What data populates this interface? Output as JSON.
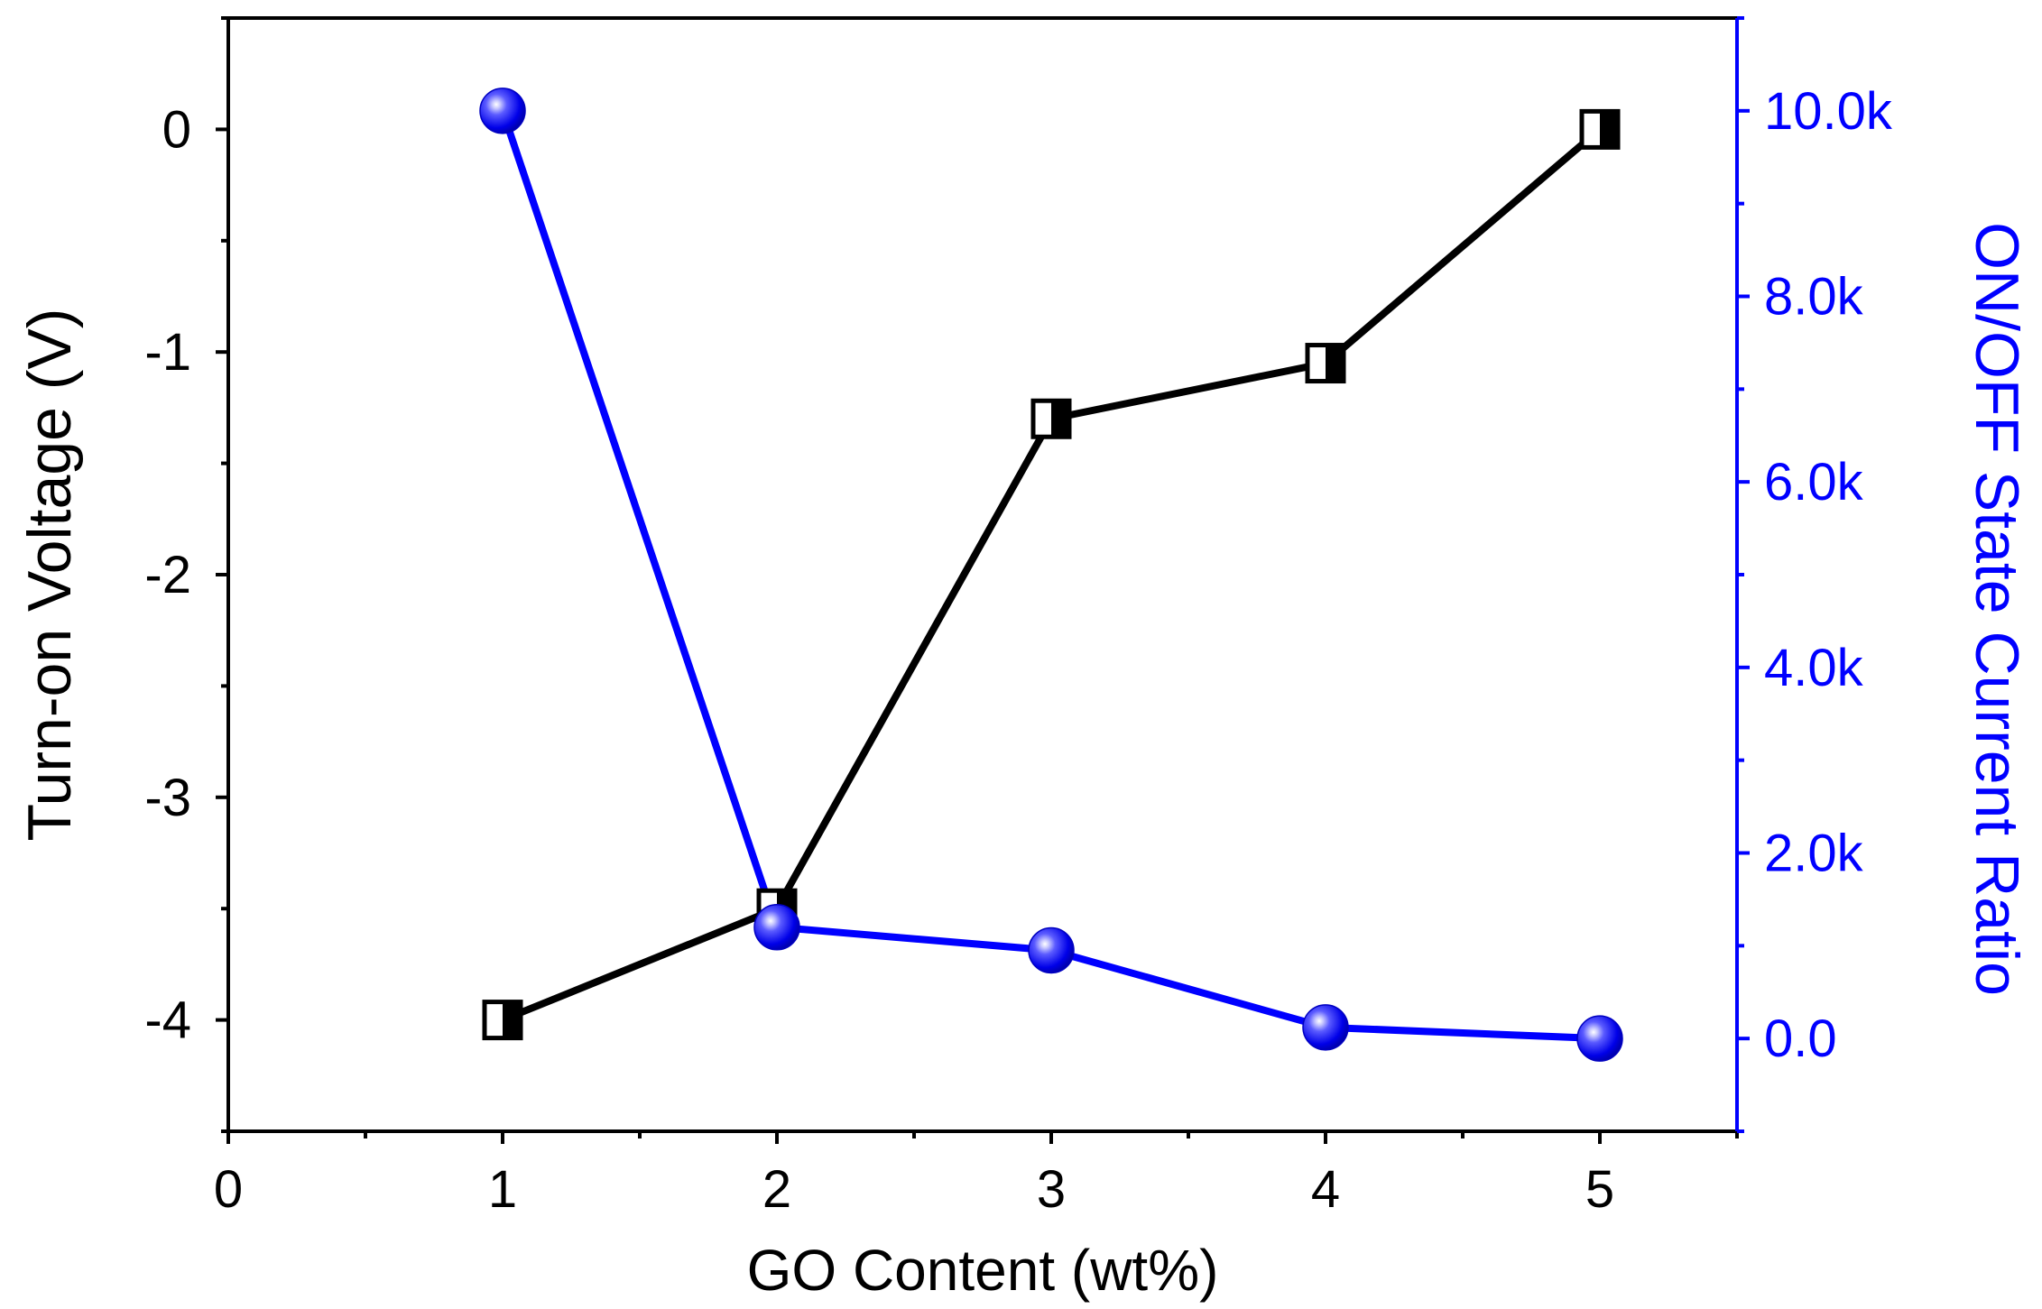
{
  "chart_data": {
    "type": "line",
    "title": "",
    "xlabel": "GO Content (wt%)",
    "ylabel_left": "Turn-on Voltage (V)",
    "ylabel_right": "ON/OFF State Current Ratio",
    "xlim": [
      0,
      5.5
    ],
    "ylim_left": [
      -4.5,
      0.5
    ],
    "ylim_right": [
      -1000,
      11000
    ],
    "x_ticks": [
      0,
      1,
      2,
      3,
      4,
      5
    ],
    "x_tick_labels": [
      "0",
      "1",
      "2",
      "3",
      "4",
      "5"
    ],
    "y_left_ticks": [
      0,
      -1,
      -2,
      -3,
      -4
    ],
    "y_left_tick_labels": [
      "0",
      "-1",
      "-2",
      "-3",
      "-4"
    ],
    "y_right_ticks": [
      10000,
      8000,
      6000,
      4000,
      2000,
      0
    ],
    "y_right_tick_labels": [
      "10.0k",
      "8.0k",
      "6.0k",
      "4.0k",
      "2.0k",
      "0.0"
    ],
    "series": [
      {
        "name": "Turn-on Voltage",
        "axis": "left",
        "marker": "half-filled-square",
        "color": "#000000",
        "x": [
          1,
          2,
          3,
          4,
          5
        ],
        "values": [
          -4.0,
          -3.5,
          -1.3,
          -1.05,
          0.0
        ]
      },
      {
        "name": "ON/OFF State Current Ratio",
        "axis": "right",
        "marker": "sphere",
        "color": "#0000ff",
        "x": [
          1,
          2,
          3,
          4,
          5
        ],
        "values": [
          10000,
          1200,
          950,
          120,
          0
        ]
      }
    ],
    "grid": false,
    "legend": "none"
  },
  "colors": {
    "left_axis": "#000000",
    "right_axis": "#0000ff",
    "background": "#ffffff"
  }
}
